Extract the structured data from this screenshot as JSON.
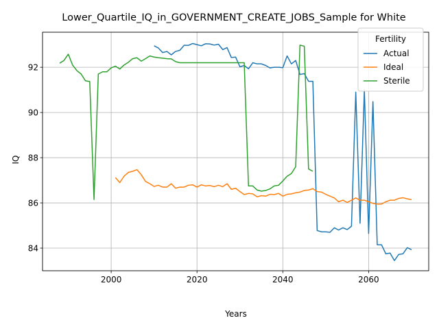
{
  "chart_data": {
    "type": "line",
    "title": "Lower_Quartile_IQ_in_GOVERNMENT_CREATE_JOBS_Sample for White",
    "xlabel": "Years",
    "ylabel": "IQ",
    "xlim": [
      1984,
      2074
    ],
    "ylim": [
      83.0,
      93.55
    ],
    "xticks": [
      2000,
      2020,
      2040,
      2060
    ],
    "yticks": [
      84,
      86,
      88,
      90,
      92
    ],
    "grid": true,
    "legend": {
      "title": "Fertility",
      "placement": "top-right"
    },
    "series": [
      {
        "name": "Actual",
        "color": "#1f77b4",
        "x": [
          2010,
          2011,
          2012,
          2013,
          2014,
          2015,
          2016,
          2017,
          2018,
          2019,
          2020,
          2021,
          2022,
          2023,
          2024,
          2025,
          2026,
          2027,
          2028,
          2029,
          2030,
          2031,
          2032,
          2033,
          2034,
          2035,
          2036,
          2037,
          2038,
          2039,
          2040,
          2041,
          2042,
          2043,
          2044,
          2045,
          2046,
          2047,
          2048,
          2049,
          2050,
          2051,
          2052,
          2053,
          2054,
          2055,
          2056,
          2057,
          2058,
          2059,
          2060,
          2061,
          2062,
          2063,
          2064,
          2065,
          2066,
          2067,
          2068,
          2069,
          2070
        ],
        "values": [
          92.95,
          92.85,
          92.65,
          92.7,
          92.55,
          92.7,
          92.75,
          92.97,
          92.97,
          93.05,
          93.0,
          92.95,
          93.04,
          93.03,
          92.98,
          93.02,
          92.78,
          92.87,
          92.43,
          92.45,
          92.02,
          92.08,
          91.93,
          92.2,
          92.15,
          92.15,
          92.08,
          91.97,
          92.0,
          92.0,
          91.98,
          92.5,
          92.15,
          92.3,
          91.68,
          91.72,
          91.38,
          91.38,
          84.78,
          84.72,
          84.72,
          84.7,
          84.9,
          84.8,
          84.9,
          84.82,
          84.97,
          90.9,
          85.1,
          91.0,
          84.65,
          90.48,
          84.15,
          84.15,
          83.75,
          83.78,
          83.45,
          83.72,
          83.75,
          84.02,
          83.93
        ]
      },
      {
        "name": "Ideal",
        "color": "#ff7f0e",
        "x": [
          2001,
          2002,
          2003,
          2004,
          2005,
          2006,
          2007,
          2008,
          2009,
          2010,
          2011,
          2012,
          2013,
          2014,
          2015,
          2016,
          2017,
          2018,
          2019,
          2020,
          2021,
          2022,
          2023,
          2024,
          2025,
          2026,
          2027,
          2028,
          2029,
          2030,
          2031,
          2032,
          2033,
          2034,
          2035,
          2036,
          2037,
          2038,
          2039,
          2040,
          2041,
          2042,
          2043,
          2044,
          2045,
          2046,
          2047,
          2048,
          2049,
          2050,
          2051,
          2052,
          2053,
          2054,
          2055,
          2056,
          2057,
          2058,
          2059,
          2060,
          2061,
          2062,
          2063,
          2064,
          2065,
          2066,
          2067,
          2068,
          2069,
          2070
        ],
        "values": [
          87.12,
          86.9,
          87.18,
          87.35,
          87.4,
          87.47,
          87.25,
          86.95,
          86.85,
          86.73,
          86.78,
          86.7,
          86.7,
          86.85,
          86.65,
          86.7,
          86.7,
          86.78,
          86.8,
          86.7,
          86.8,
          86.75,
          86.77,
          86.72,
          86.78,
          86.72,
          86.85,
          86.6,
          86.65,
          86.5,
          86.37,
          86.42,
          86.4,
          86.27,
          86.32,
          86.3,
          86.38,
          86.37,
          86.42,
          86.3,
          86.38,
          86.4,
          86.45,
          86.48,
          86.55,
          86.57,
          86.63,
          86.5,
          86.48,
          86.38,
          86.3,
          86.22,
          86.05,
          86.12,
          86.02,
          86.12,
          86.22,
          86.12,
          86.12,
          86.05,
          85.98,
          85.95,
          85.95,
          86.05,
          86.12,
          86.12,
          86.2,
          86.23,
          86.18,
          86.15
        ]
      },
      {
        "name": "Sterile",
        "color": "#2ca02c",
        "x": [
          1988,
          1989,
          1990,
          1991,
          1992,
          1993,
          1994,
          1995,
          1996,
          1997,
          1998,
          1999,
          2000,
          2001,
          2002,
          2003,
          2004,
          2005,
          2006,
          2007,
          2008,
          2009,
          2010,
          2011,
          2012,
          2013,
          2014,
          2015,
          2016,
          2017,
          2018,
          2019,
          2020,
          2021,
          2022,
          2023,
          2024,
          2025,
          2026,
          2027,
          2028,
          2029,
          2030,
          2031,
          2032,
          2033,
          2034,
          2035,
          2036,
          2037,
          2038,
          2039,
          2040,
          2041,
          2042,
          2043,
          2044,
          2045,
          2046,
          2047
        ],
        "values": [
          92.18,
          92.3,
          92.58,
          92.1,
          91.85,
          91.7,
          91.4,
          91.37,
          86.15,
          91.7,
          91.8,
          91.8,
          91.97,
          92.05,
          91.92,
          92.1,
          92.22,
          92.38,
          92.42,
          92.27,
          92.38,
          92.5,
          92.45,
          92.42,
          92.4,
          92.38,
          92.37,
          92.25,
          92.2,
          92.2,
          92.2,
          92.2,
          92.2,
          92.2,
          92.2,
          92.2,
          92.2,
          92.2,
          92.2,
          92.2,
          92.2,
          92.2,
          92.2,
          92.2,
          86.75,
          86.75,
          86.57,
          86.52,
          86.55,
          86.62,
          86.75,
          86.78,
          86.97,
          87.18,
          87.3,
          87.6,
          92.98,
          92.93,
          87.5,
          87.4
        ]
      }
    ]
  }
}
